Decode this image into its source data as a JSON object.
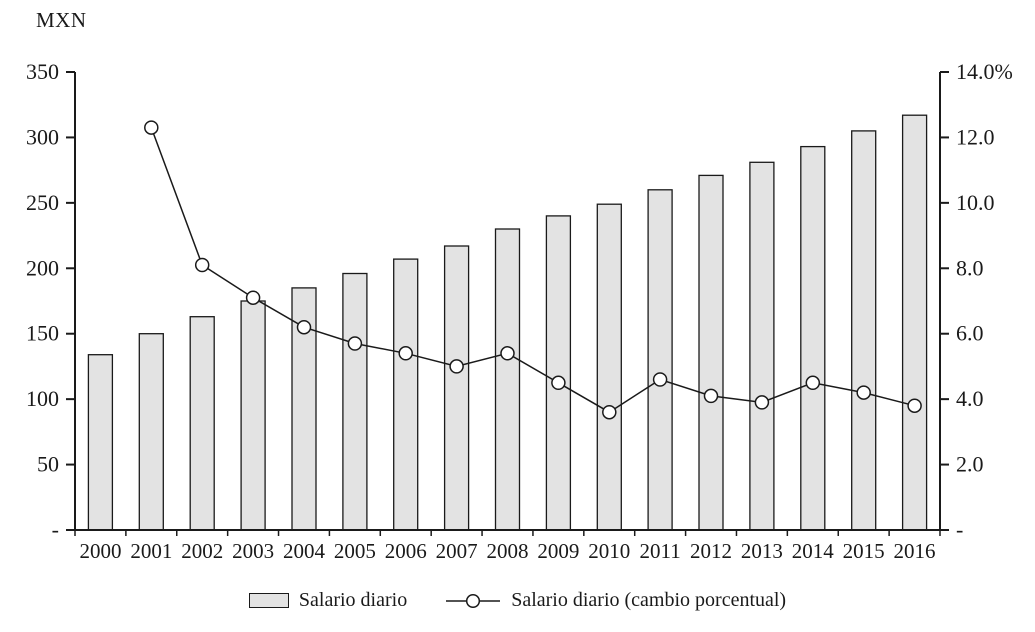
{
  "title": "MXN",
  "legend": [
    {
      "type": "bar",
      "label": "Salario diario"
    },
    {
      "type": "line",
      "label": "Salario diario (cambio porcentual)"
    }
  ],
  "chart_data": {
    "type": "bar+line",
    "title": "MXN",
    "categories": [
      "2000",
      "2001",
      "2002",
      "2003",
      "2004",
      "2005",
      "2006",
      "2007",
      "2008",
      "2009",
      "2010",
      "2011",
      "2012",
      "2013",
      "2014",
      "2015",
      "2016"
    ],
    "series": [
      {
        "name": "Salario diario",
        "type": "bar",
        "axis": "left",
        "values": [
          134,
          150,
          163,
          175,
          185,
          196,
          207,
          217,
          230,
          240,
          249,
          260,
          271,
          281,
          293,
          305,
          317
        ]
      },
      {
        "name": "Salario diario (cambio porcentual)",
        "type": "line",
        "axis": "right",
        "values": [
          null,
          12.3,
          8.1,
          7.1,
          6.2,
          5.7,
          5.4,
          5.0,
          5.4,
          4.5,
          3.6,
          4.6,
          4.1,
          3.9,
          4.5,
          4.2,
          3.8
        ]
      }
    ],
    "left_axis": {
      "label": "MXN",
      "min": 0,
      "max": 350,
      "tick_step": 50,
      "tick_labels": [
        "-",
        "50",
        "100",
        "150",
        "200",
        "250",
        "300",
        "350"
      ]
    },
    "right_axis": {
      "min": 0,
      "max": 14,
      "tick_step": 2,
      "tick_labels": [
        "-",
        "2.0",
        "4.0",
        "6.0",
        "8.0",
        "10.0",
        "12.0",
        "14.0%"
      ]
    },
    "grid": false,
    "legend_position": "bottom",
    "colors": {
      "bar_fill": "#e3e3e3",
      "bar_stroke": "#1a1a1a",
      "line": "#1a1a1a",
      "marker_fill": "#ffffff",
      "text": "#1a1a1a"
    }
  }
}
